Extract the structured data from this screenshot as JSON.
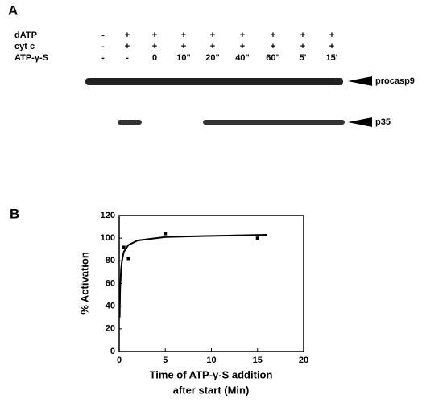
{
  "panel_a": {
    "label": "A",
    "rows": [
      {
        "label": "dATP",
        "values": [
          "-",
          "+",
          "+",
          "+",
          "+",
          "+",
          "+",
          "+",
          "+"
        ]
      },
      {
        "label": "cyt c",
        "values": [
          "-",
          "+",
          "+",
          "+",
          "+",
          "+",
          "+",
          "+",
          "+"
        ]
      },
      {
        "label": "ATP-γ-S",
        "values": [
          "-",
          "-",
          "0",
          "10\"",
          "20\"",
          "40\"",
          "60\"",
          "5'",
          "15'"
        ]
      }
    ],
    "bands": [
      "procasp9",
      "p35"
    ]
  },
  "chart_data": {
    "type": "scatter",
    "panel_label": "B",
    "ylabel": "% Activation",
    "xlabel": [
      "Time of ATP-γ-S  addition",
      "after start (Min)"
    ],
    "series": [
      {
        "mode": "markers",
        "color": "#000000",
        "x": [
          0.5,
          1,
          5,
          15
        ],
        "values": [
          92,
          82,
          104,
          100
        ]
      },
      {
        "mode": "line",
        "color": "#000000",
        "x": [
          0.05,
          0.1,
          0.2,
          0.3,
          0.5,
          1,
          2,
          5,
          10,
          16
        ],
        "values": [
          30,
          55,
          72,
          80,
          88,
          94,
          98,
          101,
          102,
          103
        ]
      }
    ],
    "xlim": [
      0,
      20
    ],
    "xticks": [
      0,
      5,
      10,
      15,
      20
    ],
    "ylim": [
      0,
      120
    ],
    "yticks": [
      0,
      20,
      40,
      60,
      80,
      100,
      120
    ]
  }
}
